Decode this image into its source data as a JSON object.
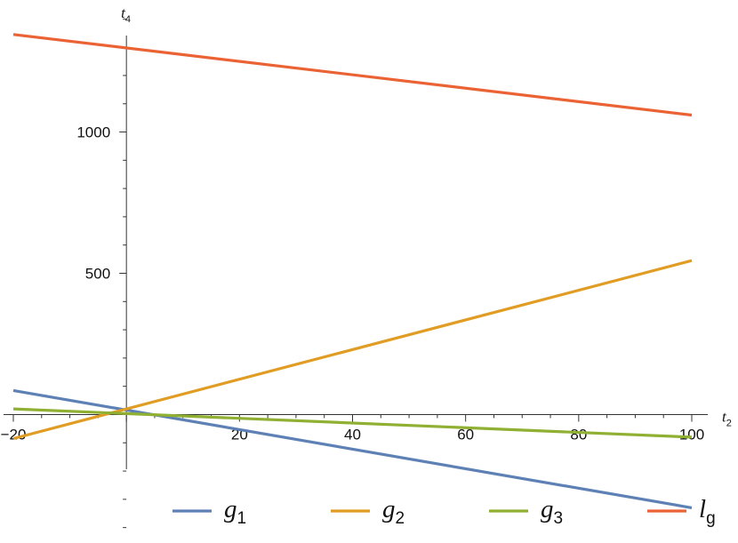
{
  "chart_data": {
    "type": "line",
    "xlabel": {
      "base": "t",
      "sub": "2"
    },
    "ylabel": {
      "base": "t",
      "sub": "4"
    },
    "xlim": [
      -20,
      100
    ],
    "ylim": [
      -420,
      1420
    ],
    "x_ticks": [
      -20,
      20,
      40,
      60,
      80,
      100
    ],
    "x_tick_labels": [
      "−20",
      "20",
      "40",
      "60",
      "80",
      "100"
    ],
    "y_ticks": [
      500,
      1000
    ],
    "y_tick_labels": [
      "500",
      "1000"
    ],
    "grid": false,
    "legend": "bottom",
    "series": [
      {
        "name": {
          "base": "g",
          "sub": "1"
        },
        "color": "#5E81B5",
        "x": [
          -20,
          100
        ],
        "y": [
          85,
          -330
        ]
      },
      {
        "name": {
          "base": "g",
          "sub": "2"
        },
        "color": "#E19C24",
        "x": [
          -20,
          100
        ],
        "y": [
          -85,
          545
        ]
      },
      {
        "name": {
          "base": "g",
          "sub": "3"
        },
        "color": "#8FB032",
        "x": [
          -20,
          100
        ],
        "y": [
          20,
          -80
        ]
      },
      {
        "name": {
          "base": "l",
          "sub": "g"
        },
        "color": "#EB6235",
        "x": [
          -20,
          100
        ],
        "y": [
          1345,
          1060
        ]
      }
    ]
  }
}
